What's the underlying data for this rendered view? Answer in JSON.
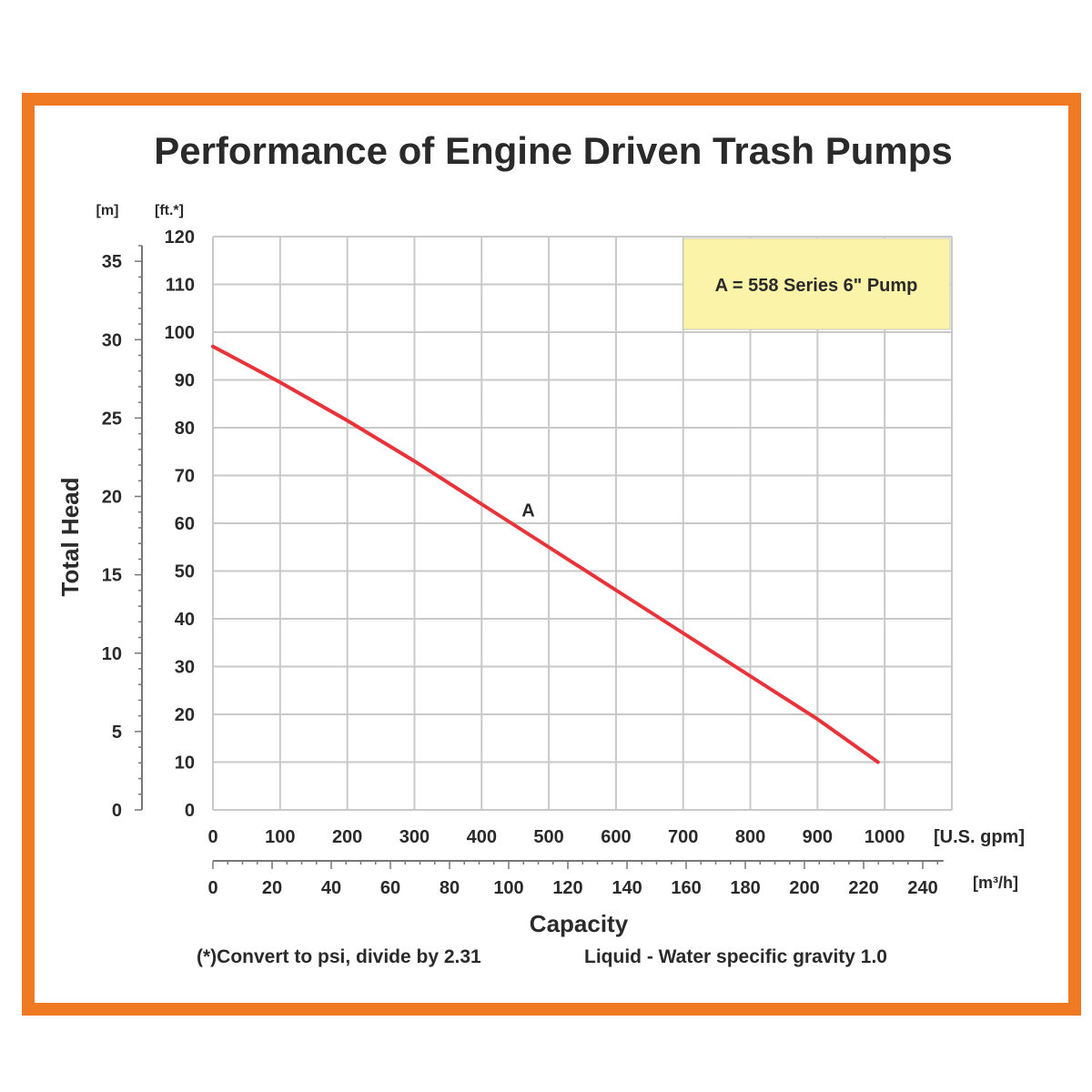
{
  "colors": {
    "frame": "#f07a23",
    "curve": "#e8333a",
    "grid": "#c9c9c9",
    "legend_bg": "#fbf3a8"
  },
  "chart_data": {
    "type": "line",
    "title": "Performance of Engine Driven Trash Pumps",
    "xlabel": "Capacity",
    "ylabel": "Total Head",
    "x_unit_primary": "[U.S. gpm]",
    "x_unit_secondary": "[m³/h]",
    "y_unit_primary": "[ft.*]",
    "y_unit_secondary": "[m]",
    "xlim": [
      0,
      1100
    ],
    "ylim": [
      0,
      120
    ],
    "x_ticks": [
      "0",
      "100",
      "200",
      "300",
      "400",
      "500",
      "600",
      "700",
      "800",
      "900",
      "1000"
    ],
    "x2_ticks": [
      "0",
      "20",
      "40",
      "60",
      "80",
      "100",
      "120",
      "140",
      "160",
      "180",
      "200",
      "220",
      "240"
    ],
    "y_ticks": [
      "0",
      "10",
      "20",
      "30",
      "40",
      "50",
      "60",
      "70",
      "80",
      "90",
      "100",
      "110",
      "120"
    ],
    "y2_ticks": [
      "0",
      "5",
      "10",
      "15",
      "20",
      "25",
      "30",
      "35"
    ],
    "grid": true,
    "legend": {
      "text": "A = 558 Series 6\" Pump",
      "position": "top-right"
    },
    "series": [
      {
        "name": "A",
        "x": [
          0,
          100,
          200,
          300,
          400,
          500,
          600,
          700,
          800,
          900,
          990
        ],
        "y": [
          97,
          89.5,
          81.5,
          73,
          64,
          55,
          46,
          37,
          28,
          19,
          10
        ]
      }
    ],
    "footnote_left": "(*)Convert to psi, divide by 2.31",
    "footnote_right": "Liquid - Water specific gravity 1.0"
  }
}
